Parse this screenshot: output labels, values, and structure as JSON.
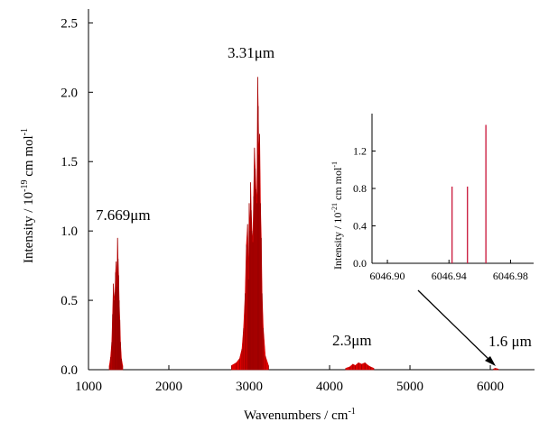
{
  "chart_data": [
    {
      "type": "bar",
      "title": "",
      "xlabel": {
        "main": "Wavenumbers / cm",
        "sup": "-1"
      },
      "ylabel": {
        "pre": "Intensity / 10",
        "sup1": "-19",
        "mid": " cm mol",
        "sup2": "-1"
      },
      "xlim": [
        1000,
        6550
      ],
      "ylim": [
        0,
        2.6
      ],
      "x_ticks": [
        1000,
        2000,
        3000,
        4000,
        5000,
        6000
      ],
      "y_ticks": [
        0.0,
        0.5,
        1.0,
        1.5,
        2.0,
        2.5
      ],
      "x_tick_labels": [
        "1000",
        "2000",
        "3000",
        "4000",
        "5000",
        "6000"
      ],
      "y_tick_labels": [
        "0.0",
        "0.5",
        "1.0",
        "1.5",
        "2.0",
        "2.5"
      ],
      "grid": false,
      "color": "#dd0000",
      "bands": [
        {
          "label": "7.669μm",
          "x": [
            1260,
            1275,
            1290,
            1300,
            1310,
            1320,
            1330,
            1337,
            1345,
            1355,
            1362,
            1368,
            1375,
            1382,
            1390,
            1398,
            1410,
            1425
          ],
          "y": [
            0.03,
            0.09,
            0.2,
            0.4,
            0.62,
            0.5,
            0.56,
            0.7,
            0.78,
            0.6,
            0.95,
            0.8,
            0.68,
            0.5,
            0.36,
            0.2,
            0.08,
            0.03
          ]
        },
        {
          "label": "3.31μm",
          "x": [
            2780,
            2840,
            2880,
            2910,
            2930,
            2950,
            2965,
            2980,
            2990,
            3000,
            3010,
            3018,
            3025,
            3035,
            3045,
            3055,
            3065,
            3075,
            3085,
            3095,
            3105,
            3112,
            3120,
            3130,
            3140,
            3150,
            3160,
            3175,
            3200,
            3240
          ],
          "y": [
            0.03,
            0.05,
            0.08,
            0.15,
            0.3,
            0.55,
            0.9,
            1.05,
            0.65,
            1.2,
            1.0,
            1.35,
            1.15,
            1.0,
            0.92,
            1.25,
            1.6,
            1.45,
            1.3,
            1.2,
            2.11,
            1.9,
            1.55,
            1.7,
            1.2,
            0.95,
            0.55,
            0.3,
            0.1,
            0.03
          ]
        },
        {
          "label": "2.3μm",
          "x": [
            4200,
            4250,
            4290,
            4320,
            4360,
            4400,
            4440,
            4480,
            4510,
            4550
          ],
          "y": [
            0.01,
            0.02,
            0.04,
            0.03,
            0.05,
            0.04,
            0.05,
            0.03,
            0.02,
            0.01
          ]
        },
        {
          "label": "1.6 μm",
          "x": [
            6040,
            6060,
            6080,
            6100
          ],
          "y": [
            0.005,
            0.01,
            0.008,
            0.004
          ]
        }
      ]
    },
    {
      "type": "bar",
      "title": "",
      "xlabel": "",
      "ylabel": {
        "pre": "Intensity / 10",
        "sup1": "-21",
        "mid": " cm mol",
        "sup2": "-1"
      },
      "xlim": [
        6046.89,
        6046.995
      ],
      "ylim": [
        0,
        1.6
      ],
      "x_ticks": [
        6046.9,
        6046.94,
        6046.98
      ],
      "y_ticks": [
        0.0,
        0.4,
        0.8,
        1.2
      ],
      "x_tick_labels": [
        "6046.90",
        "6046.94",
        "6046.98"
      ],
      "y_tick_labels": [
        "0.0",
        "0.4",
        "0.8",
        "1.2"
      ],
      "color": "#cc2244",
      "lines": [
        {
          "x": 6046.942,
          "y": 0.82
        },
        {
          "x": 6046.952,
          "y": 0.82
        },
        {
          "x": 6046.964,
          "y": 1.48
        }
      ]
    }
  ]
}
